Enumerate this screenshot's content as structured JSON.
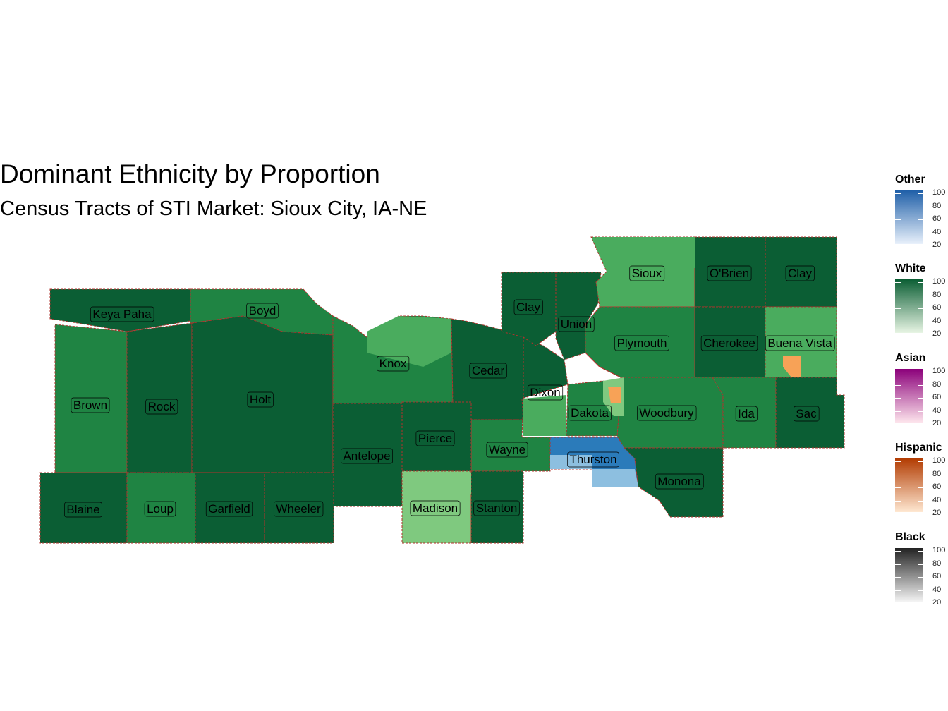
{
  "title": "Dominant Ethnicity by Proportion",
  "subtitle": "Census Tracts of STI Market: Sioux City, IA-NE",
  "colors": {
    "white_dark": "#0b5e34",
    "white_mid": "#1f8443",
    "white_light": "#4aac5e",
    "white_pale": "#7fc97f",
    "other_dark": "#2b7bba",
    "other_light": "#8dbfe0",
    "hispanic": "#f7a257",
    "asian": "#f4a4c8",
    "border": "#b0322c"
  },
  "counties": [
    {
      "name": "Keya Paha"
    },
    {
      "name": "Boyd"
    },
    {
      "name": "Brown"
    },
    {
      "name": "Rock"
    },
    {
      "name": "Holt"
    },
    {
      "name": "Knox"
    },
    {
      "name": "Cedar"
    },
    {
      "name": "Dixon"
    },
    {
      "name": "Dakota"
    },
    {
      "name": "Thurston"
    },
    {
      "name": "Wayne"
    },
    {
      "name": "Pierce"
    },
    {
      "name": "Antelope"
    },
    {
      "name": "Madison"
    },
    {
      "name": "Stanton"
    },
    {
      "name": "Blaine"
    },
    {
      "name": "Loup"
    },
    {
      "name": "Garfield"
    },
    {
      "name": "Wheeler"
    },
    {
      "name": "Clay"
    },
    {
      "name": "Union"
    },
    {
      "name": "Sioux"
    },
    {
      "name": "O'Brien"
    },
    {
      "name": "Clay"
    },
    {
      "name": "Plymouth"
    },
    {
      "name": "Cherokee"
    },
    {
      "name": "Buena Vista"
    },
    {
      "name": "Woodbury"
    },
    {
      "name": "Ida"
    },
    {
      "name": "Sac"
    },
    {
      "name": "Monona"
    }
  ],
  "legends": [
    {
      "title": "Other",
      "low": "#e9f1fb",
      "high": "#1f5fa8",
      "ticks": [
        "100",
        "80",
        "60",
        "40",
        "20"
      ]
    },
    {
      "title": "White",
      "low": "#e8f5e4",
      "high": "#0b5e34",
      "ticks": [
        "100",
        "80",
        "60",
        "40",
        "20"
      ]
    },
    {
      "title": "Asian",
      "low": "#fde5ec",
      "high": "#8b007a",
      "ticks": [
        "100",
        "80",
        "60",
        "40",
        "20"
      ]
    },
    {
      "title": "Hispanic",
      "low": "#fee8d2",
      "high": "#b23c02",
      "ticks": [
        "100",
        "80",
        "60",
        "40",
        "20"
      ]
    },
    {
      "title": "Black",
      "low": "#f4f4f4",
      "high": "#222222",
      "ticks": [
        "100",
        "80",
        "60",
        "40",
        "20"
      ]
    }
  ]
}
